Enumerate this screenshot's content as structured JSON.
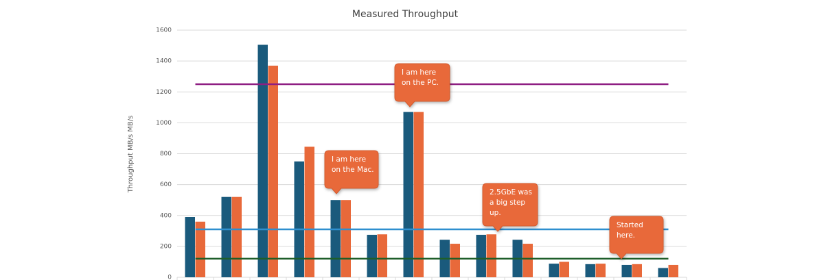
{
  "chart_data": {
    "type": "bar",
    "title": "Measured Throughput",
    "y_label": "Throughput MB/s MB/s",
    "categories": [
      null,
      null,
      null,
      null,
      null,
      null,
      null,
      null,
      null,
      null,
      null,
      null,
      null,
      null
    ],
    "series": [
      {
        "color": "#1a5a7c",
        "values": [
          390,
          520,
          1505,
          750,
          500,
          275,
          1070,
          243,
          275,
          243,
          88,
          85,
          80,
          60
        ]
      },
      {
        "color": "#e8693a",
        "values": [
          360,
          520,
          1370,
          845,
          500,
          278,
          1070,
          217,
          278,
          217,
          100,
          88,
          85,
          80
        ]
      }
    ],
    "reference_lines": [
      {
        "value": 1250,
        "color": "#8e1e82"
      },
      {
        "value": 310,
        "color": "#2e8fcf"
      },
      {
        "value": 120,
        "color": "#1e5e2a"
      }
    ],
    "annotations": [
      {
        "lines": [
          "I am here",
          "on the PC."
        ]
      },
      {
        "lines": [
          "I am here",
          "on the Mac."
        ]
      },
      {
        "lines": [
          "2.5GbE was",
          "a big step",
          "up."
        ]
      },
      {
        "lines": [
          "Started",
          "here."
        ]
      }
    ],
    "ylim": [
      0,
      1600
    ],
    "yticks": [
      0,
      200,
      400,
      600,
      800,
      1000,
      1200,
      1400,
      1600
    ],
    "grid": true
  }
}
